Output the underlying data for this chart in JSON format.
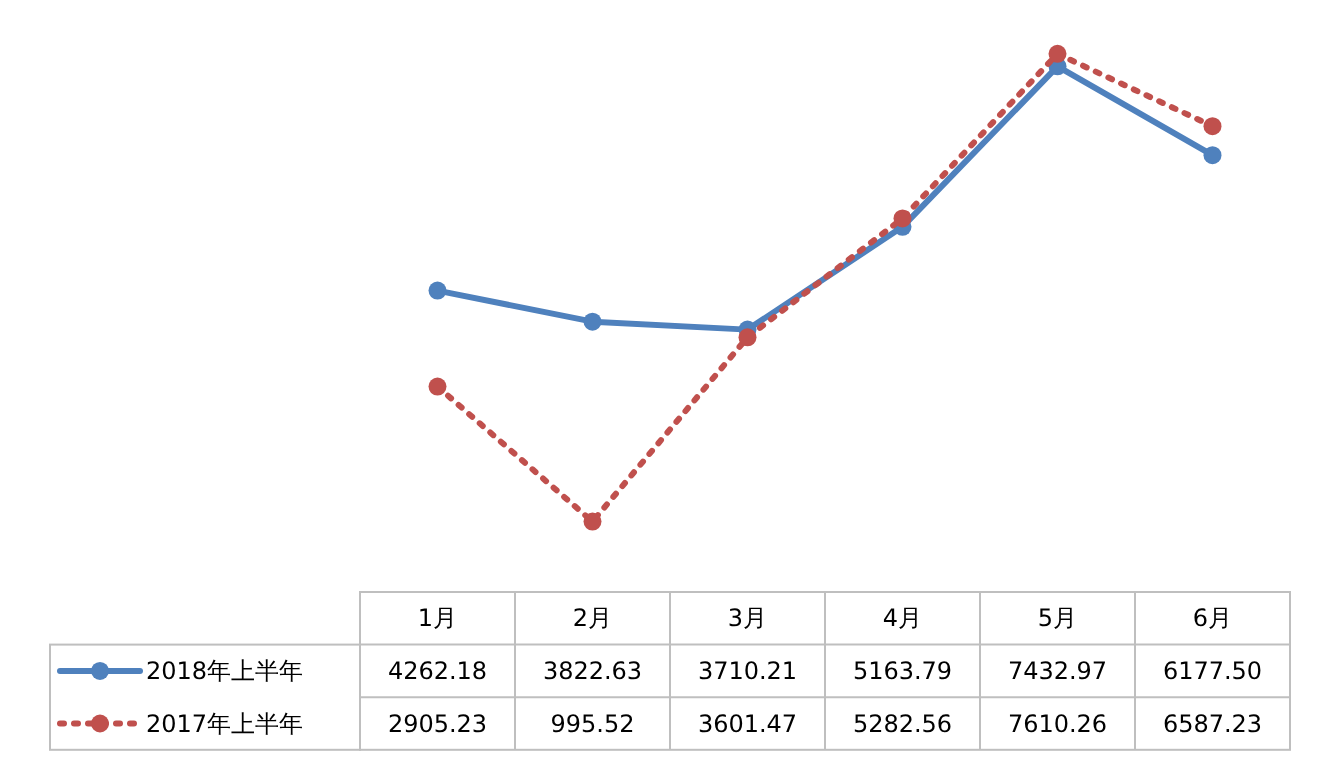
{
  "chart_data": {
    "type": "line",
    "categories": [
      "1月",
      "2月",
      "3月",
      "4月",
      "5月",
      "6月"
    ],
    "series": [
      {
        "name": "2018年上半年",
        "color": "#4f81bd",
        "line_style": "solid",
        "values": [
          4262.18,
          3822.63,
          3710.21,
          5163.79,
          7432.97,
          6177.5
        ],
        "value_labels": [
          "4262.18",
          "3822.63",
          "3710.21",
          "5163.79",
          "7432.97",
          "6177.50"
        ]
      },
      {
        "name": "2017年上半年",
        "color": "#c0504d",
        "line_style": "dotted",
        "values": [
          2905.23,
          995.52,
          3601.47,
          5282.56,
          7610.26,
          6587.23
        ],
        "value_labels": [
          "2905.23",
          "995.52",
          "3601.47",
          "5282.56",
          "7610.26",
          "6587.23"
        ]
      }
    ],
    "marker": "circle",
    "legend": "bottom left",
    "data_labels": true,
    "grid": false
  }
}
